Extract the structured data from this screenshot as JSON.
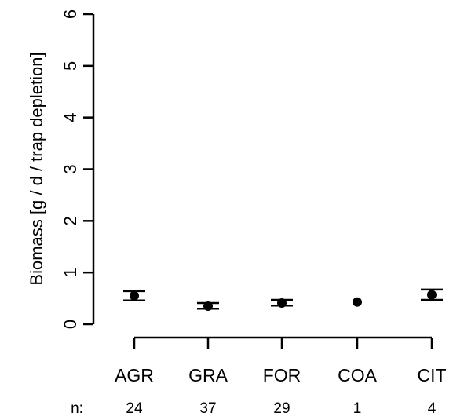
{
  "chart_data": {
    "type": "scatter",
    "title": "",
    "xlabel": "",
    "ylabel": "Biomass [g / d / trap depletion]",
    "ylim": [
      0,
      6
    ],
    "yticks": [
      0,
      1,
      2,
      3,
      4,
      5,
      6
    ],
    "grid": false,
    "categories": [
      "AGR",
      "GRA",
      "FOR",
      "COA",
      "CIT"
    ],
    "n_prefix": "n:",
    "n": [
      "24",
      "37",
      "29",
      "1",
      "4"
    ],
    "series": [
      {
        "values": [
          0.55,
          0.35,
          0.41,
          0.43,
          0.57
        ],
        "lower": [
          0.46,
          0.3,
          0.36,
          null,
          0.47
        ],
        "upper": [
          0.64,
          0.41,
          0.47,
          null,
          0.67
        ]
      }
    ]
  }
}
